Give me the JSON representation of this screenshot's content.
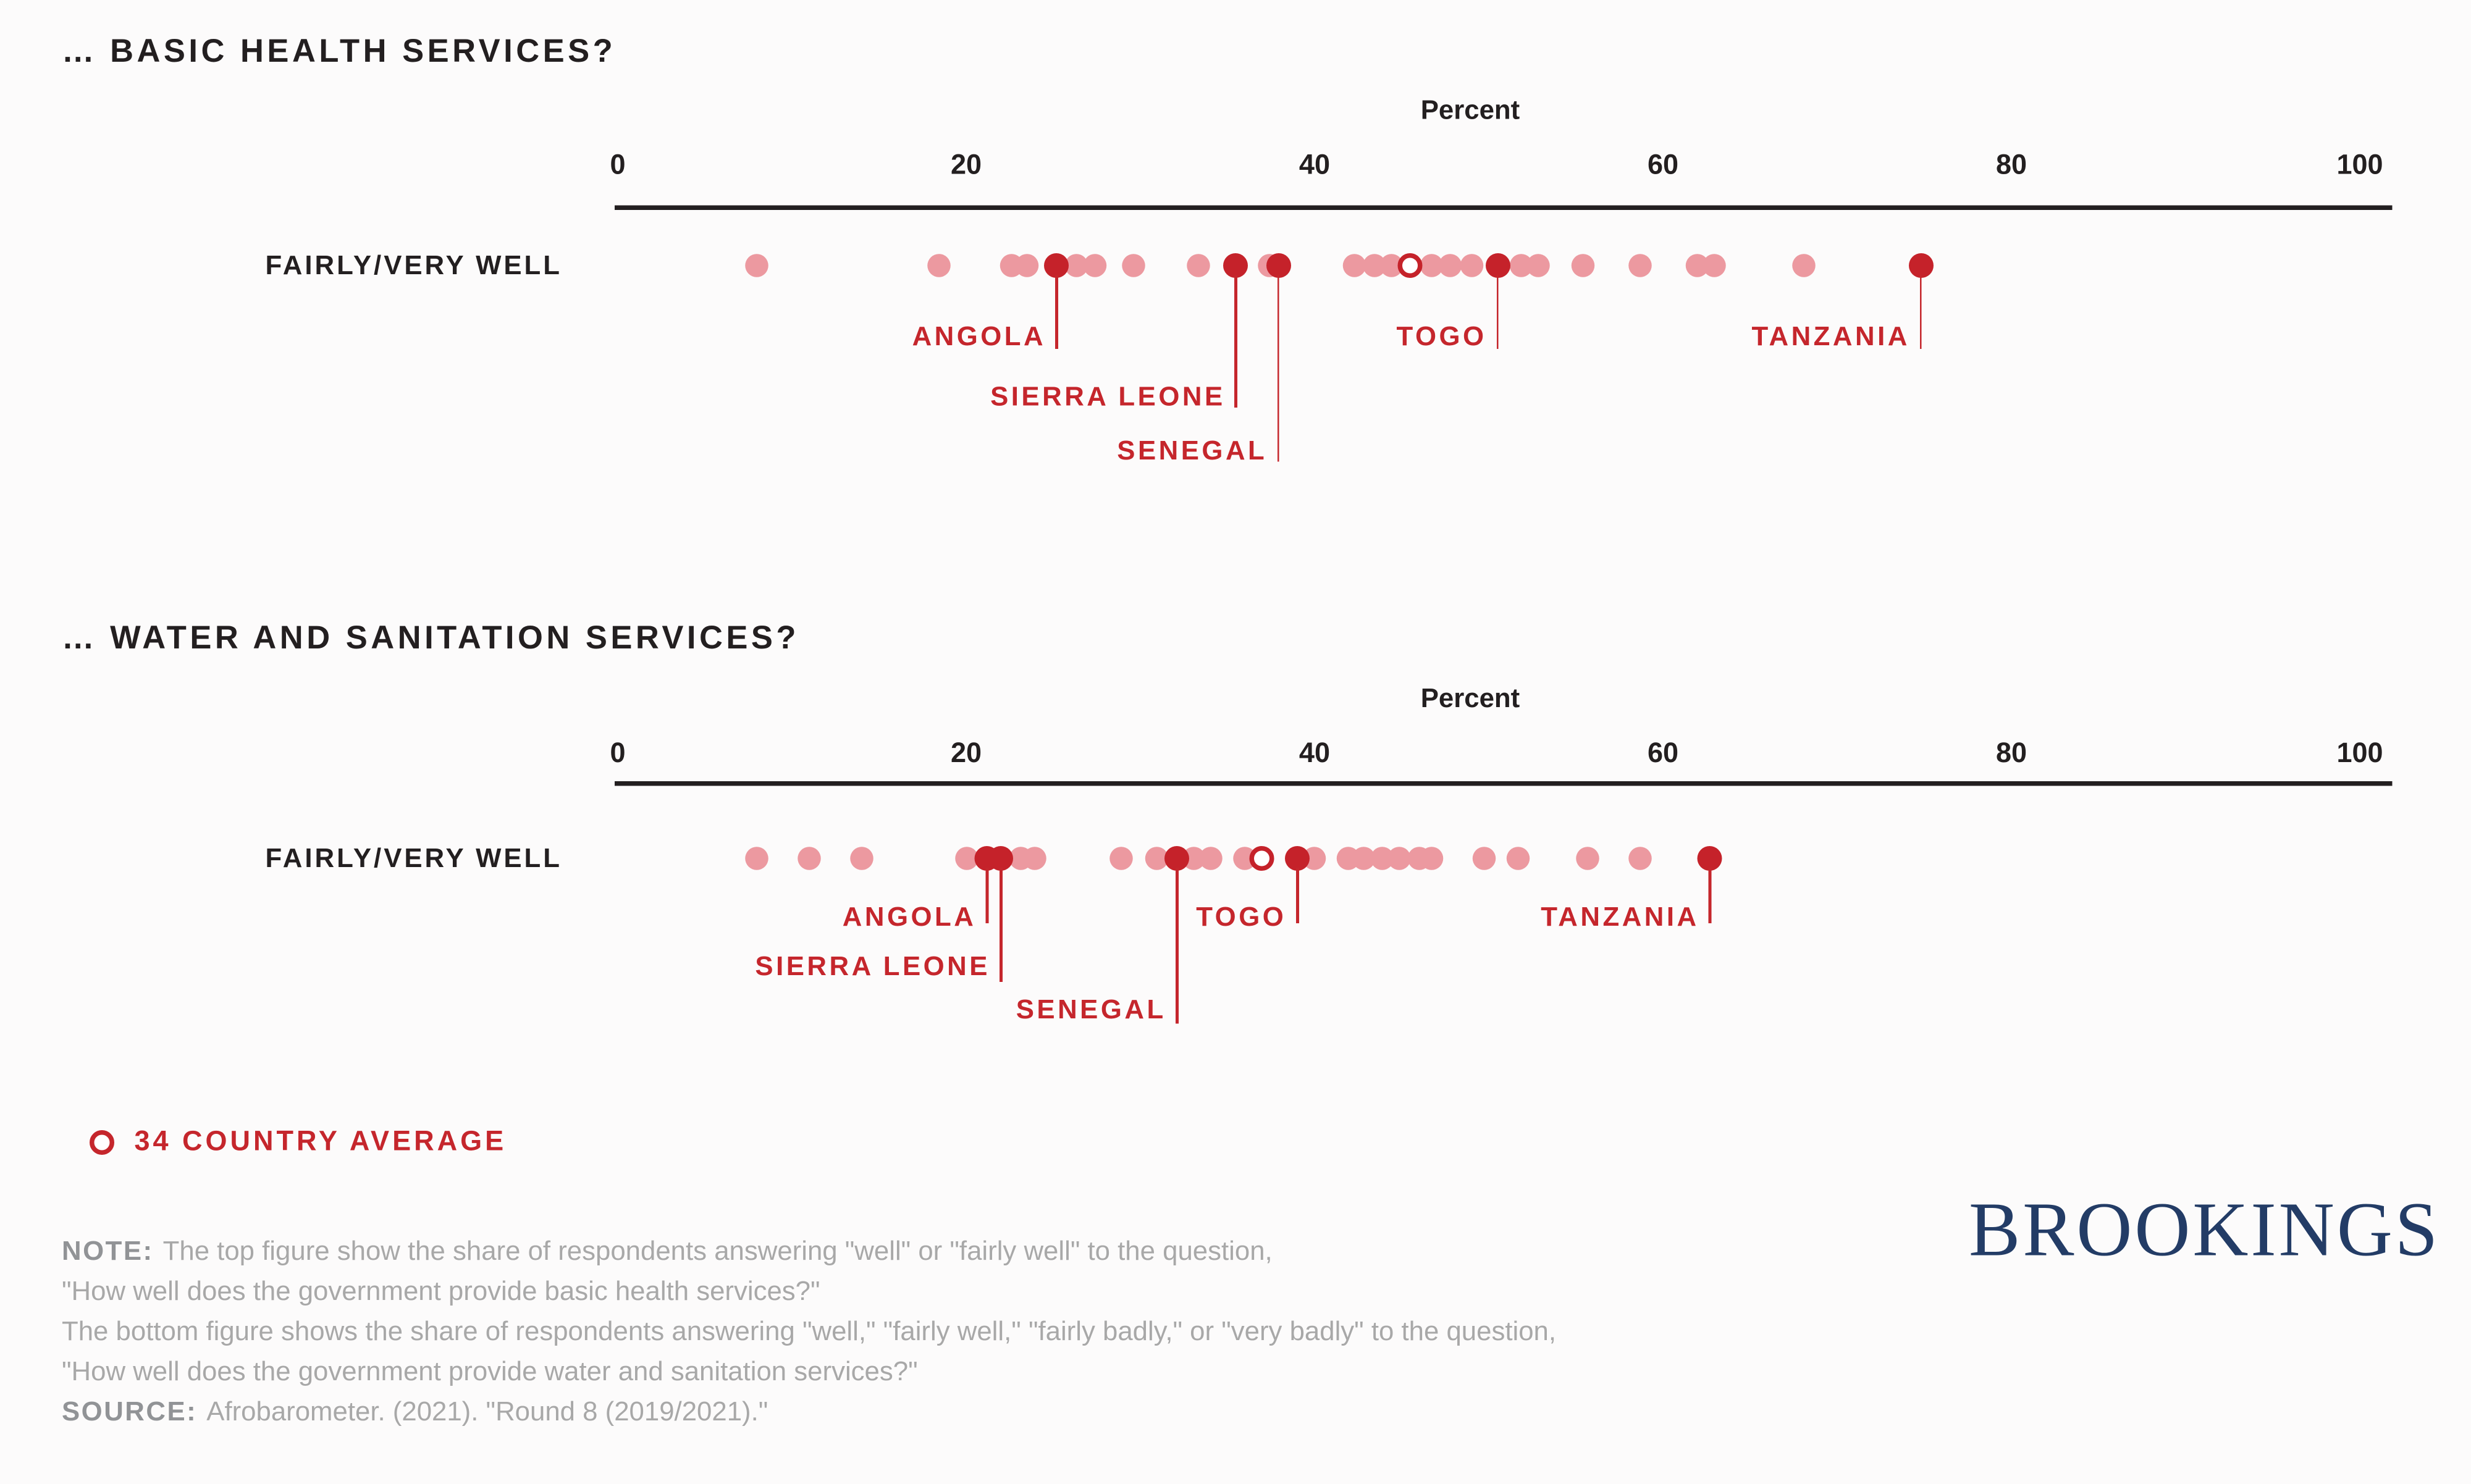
{
  "colors": {
    "background": "#fcfbfb",
    "light_dot": "#ec99a0",
    "dark_dot": "#c5222a",
    "label_red": "#c5262c",
    "text_dark": "#231f20",
    "note_gray": "#a8a8a8",
    "note_label_gray": "#919396",
    "brookings_navy": "#233c66"
  },
  "chart_data": [
    {
      "type": "scatter",
      "subtype": "dot-strip",
      "title": "… BASIC HEALTH SERVICES?",
      "axis_title": "Percent",
      "row_label": "FAIRLY/VERY WELL",
      "xlim": [
        0,
        100
      ],
      "ticks": [
        0,
        20,
        40,
        60,
        80,
        100
      ],
      "grid": false,
      "unlabeled_values": [
        8,
        18.4,
        22.6,
        23.5,
        26.3,
        27.4,
        29.6,
        33.3,
        37.4,
        42.3,
        43.4,
        44.4,
        46.7,
        47.8,
        49,
        51.9,
        52.8,
        55.4,
        58.7,
        62,
        62.9,
        68.1
      ],
      "average": {
        "label": "34 COUNTRY AVERAGE",
        "value": 45.5
      },
      "labeled_countries": [
        {
          "name": "ANGOLA",
          "value": 25.2,
          "label_row": 0
        },
        {
          "name": "SIERRA LEONE",
          "value": 35.5,
          "label_row": 1
        },
        {
          "name": "SENEGAL",
          "value": 37.9,
          "label_row": 2
        },
        {
          "name": "TOGO",
          "value": 50.5,
          "label_row": 0
        },
        {
          "name": "TANZANIA",
          "value": 74.8,
          "label_row": 0
        }
      ]
    },
    {
      "type": "scatter",
      "subtype": "dot-strip",
      "title": "… WATER AND SANITATION SERVICES?",
      "axis_title": "Percent",
      "row_label": "FAIRLY/VERY WELL",
      "xlim": [
        0,
        100
      ],
      "ticks": [
        0,
        20,
        40,
        60,
        80,
        100
      ],
      "grid": false,
      "unlabeled_values": [
        8,
        11,
        14,
        20,
        23.1,
        23.9,
        28.9,
        30.9,
        33.1,
        34,
        36,
        40,
        41.9,
        42.8,
        43.9,
        44.9,
        46,
        46.7,
        49.7,
        51.7,
        55.7,
        58.7
      ],
      "average": {
        "label": "34 COUNTRY AVERAGE",
        "value": 37
      },
      "labeled_countries": [
        {
          "name": "ANGOLA",
          "value": 21.2,
          "label_row": 0
        },
        {
          "name": "SIERRA LEONE",
          "value": 22,
          "label_row": 1
        },
        {
          "name": "SENEGAL",
          "value": 32.1,
          "label_row": 2
        },
        {
          "name": "TOGO",
          "value": 39,
          "label_row": 0
        },
        {
          "name": "TANZANIA",
          "value": 62.7,
          "label_row": 0
        }
      ]
    }
  ],
  "legend": {
    "label": "34 COUNTRY AVERAGE"
  },
  "note": {
    "note_label": "NOTE:",
    "line1": "The top figure show the share of respondents answering \"well\" or \"fairly well\" to the question,",
    "line2": "\"How well does the government provide basic health services?\"",
    "line3": "The bottom figure shows the share of respondents answering \"well,\" \"fairly well,\" \"fairly badly,\" or \"very badly\" to the question,",
    "line4": "\"How well does the government provide water and sanitation services?\"",
    "source_label": "SOURCE:",
    "source_text": "Afrobarometer. (2021). \"Round 8 (2019/2021).\""
  },
  "logo": {
    "text": "BROOKINGS"
  }
}
